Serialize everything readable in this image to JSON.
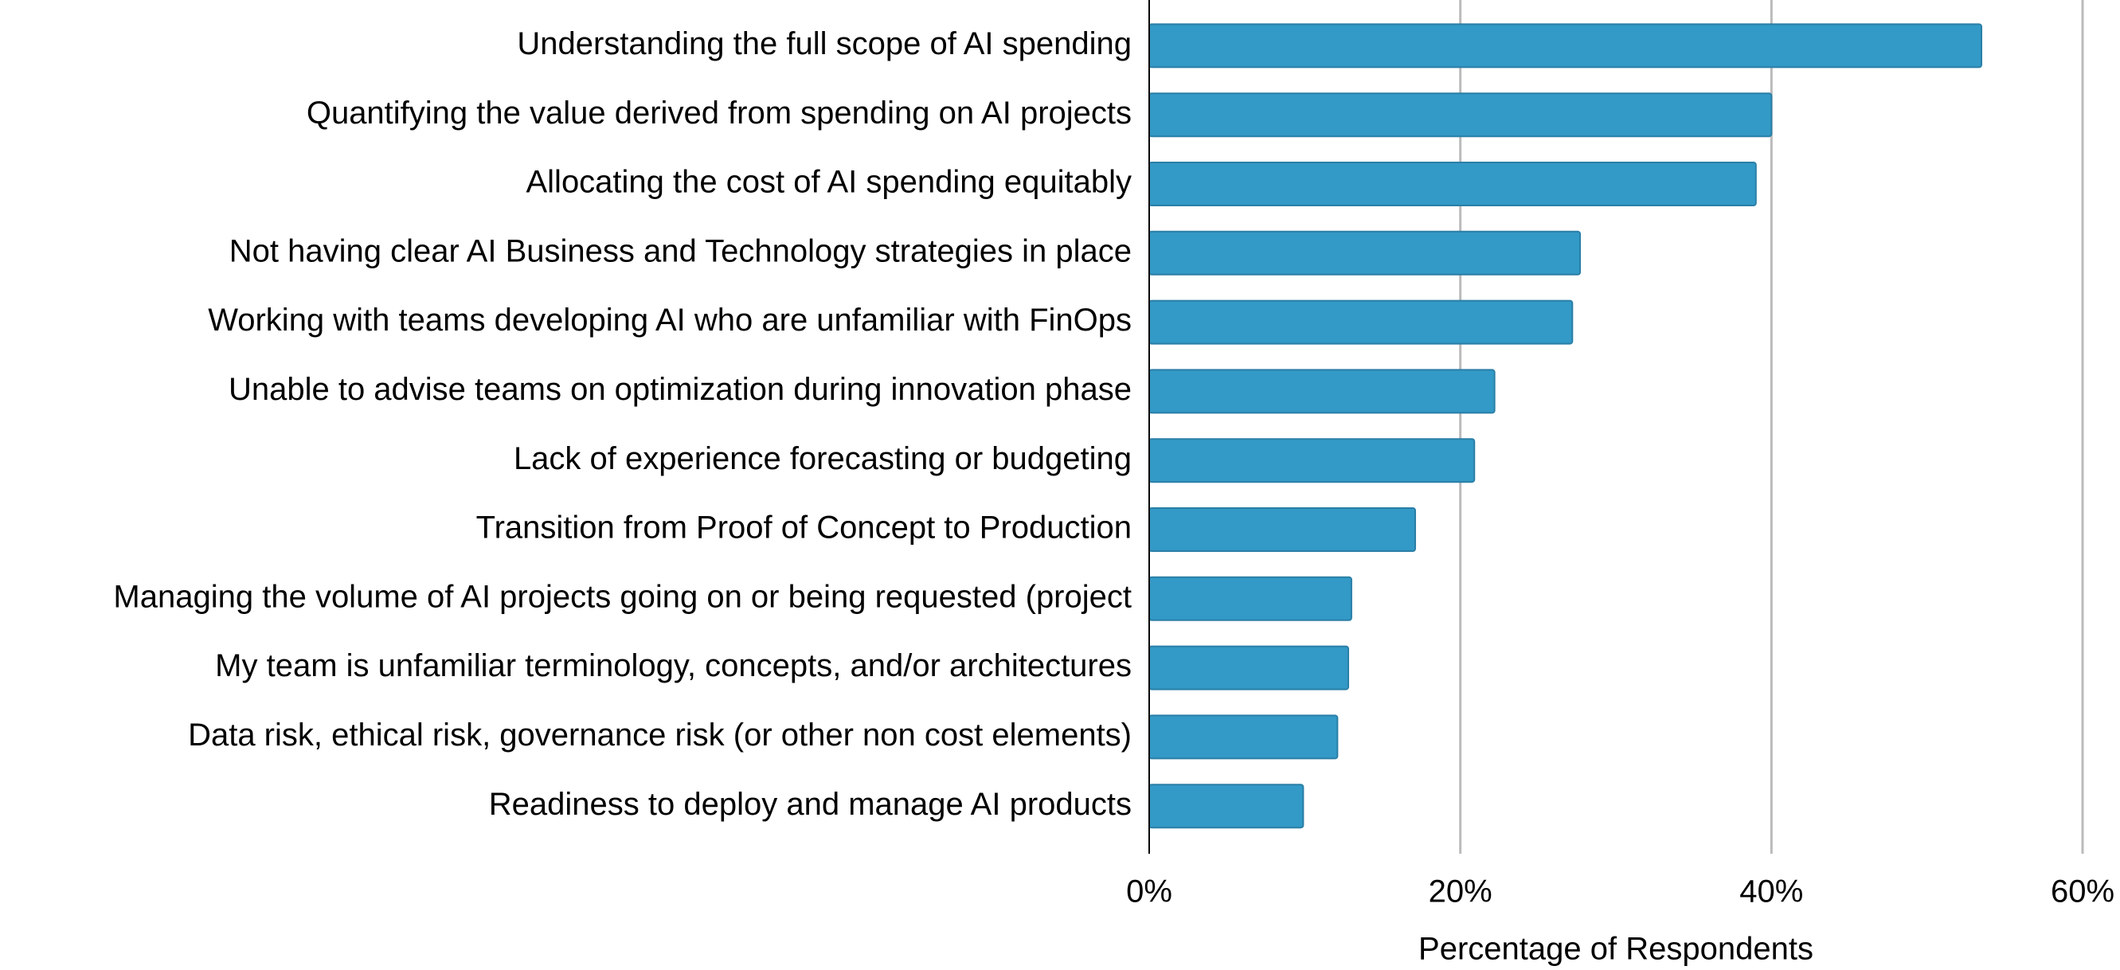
{
  "chart_data": {
    "type": "barh",
    "x_label": "Percentage of Respondents",
    "categories": [
      "Understanding the full scope of AI spending",
      "Quantifying the value derived from spending on AI projects",
      "Allocating the cost of AI spending equitably",
      "Not having clear AI Business and Technology strategies in place",
      "Working with teams developing AI who are unfamiliar with FinOps",
      "Unable to advise teams on optimization during innovation phase",
      "Lack of experience forecasting or budgeting",
      "Transition from Proof of Concept to Production",
      "Managing the volume of AI projects going on or being requested (project",
      "My team is unfamiliar terminology, concepts, and/or architectures",
      "Data risk, ethical risk, governance risk (or other non cost elements)",
      "Readiness to deploy and manage AI products"
    ],
    "values": [
      53.5,
      40,
      39,
      27.7,
      27.2,
      22.2,
      20.9,
      17.1,
      13,
      12.8,
      12.1,
      9.9
    ],
    "color": "#3399c6",
    "xlim": [
      0,
      60
    ],
    "xticks": [
      {
        "value": 0,
        "label": "0%"
      },
      {
        "value": 20,
        "label": "20%"
      },
      {
        "value": 40,
        "label": "40%"
      },
      {
        "value": 60,
        "label": "60%"
      }
    ],
    "grid": true
  }
}
